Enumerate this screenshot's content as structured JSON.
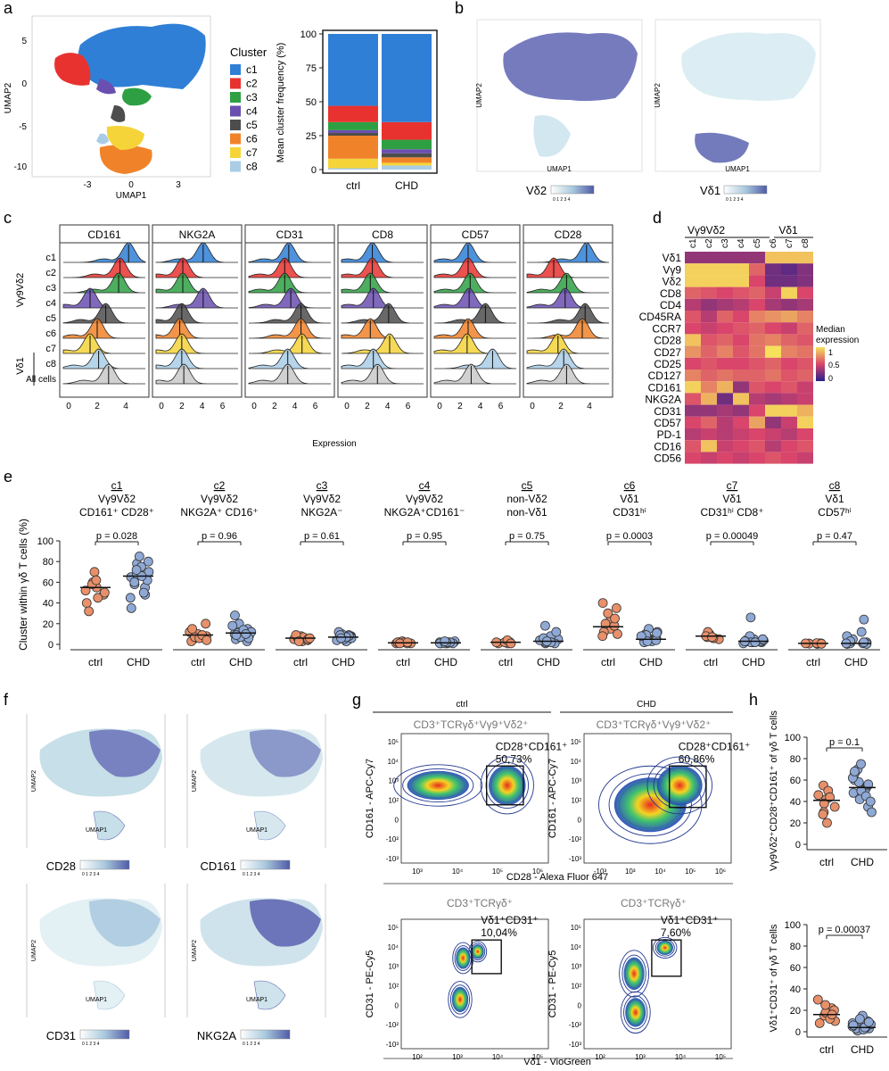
{
  "colors": {
    "c1": "#2f7fd6",
    "c2": "#e8322f",
    "c3": "#2ea043",
    "c4": "#6a4fb0",
    "c5": "#4d4d4d",
    "c6": "#f0832a",
    "c7": "#f5d43a",
    "c8": "#a9cde6",
    "ctrl": "#e8906a",
    "chd": "#8fa9d6",
    "umap_hi": "#4f5aa8",
    "umap_lo": "#dceef3"
  },
  "panels": {
    "a": "a",
    "b": "b",
    "c": "c",
    "d": "d",
    "e": "e",
    "f": "f",
    "g": "g",
    "h": "h"
  },
  "a": {
    "umap_xlabel": "UMAP1",
    "umap_ylabel": "UMAP2",
    "umap_xticks": [
      "-3",
      "0",
      "3"
    ],
    "umap_yticks": [
      "5",
      "0",
      "-5",
      "-10"
    ],
    "legend_title": "Cluster",
    "clusters": [
      "c1",
      "c2",
      "c3",
      "c4",
      "c5",
      "c6",
      "c7",
      "c8"
    ]
  },
  "chart_data": [
    {
      "type": "bar",
      "id": "cluster-frequency",
      "ylabel": "Mean cluster frequency (%)",
      "categories": [
        "ctrl",
        "CHD"
      ],
      "ylim": [
        0,
        100
      ],
      "yticks": [
        "100",
        "75",
        "50",
        "25",
        "0"
      ],
      "series": [
        {
          "name": "c8",
          "values": [
            1,
            3
          ]
        },
        {
          "name": "c7",
          "values": [
            7,
            2
          ]
        },
        {
          "name": "c6",
          "values": [
            17,
            4
          ]
        },
        {
          "name": "c5",
          "values": [
            2,
            3
          ]
        },
        {
          "name": "c4",
          "values": [
            2,
            3
          ]
        },
        {
          "name": "c3",
          "values": [
            6,
            7
          ]
        },
        {
          "name": "c2",
          "values": [
            12,
            13
          ]
        },
        {
          "name": "c1",
          "values": [
            53,
            65
          ]
        }
      ]
    },
    {
      "type": "scatter",
      "id": "cluster-within-gd",
      "ylabel": "Cluster within γδ T cells (%)",
      "ylim": [
        0,
        100
      ],
      "yticks": [
        "100",
        "80",
        "60",
        "40",
        "20",
        "0"
      ],
      "groups": [
        {
          "cluster": "c1",
          "line1": "Vγ9Vδ2",
          "line2": "CD161⁺ CD28⁺",
          "p": "p = 0.028",
          "ctrl": [
            52,
            48,
            40,
            55,
            60,
            70,
            45,
            32,
            58,
            62,
            50
          ],
          "chd": [
            65,
            58,
            72,
            80,
            48,
            35,
            70,
            55,
            78,
            62,
            68,
            75,
            60,
            50,
            85,
            66,
            72,
            45
          ],
          "ctrl_median": 55,
          "chd_median": 66
        },
        {
          "cluster": "c2",
          "line1": "Vγ9Vδ2",
          "line2": "NKG2A⁺ CD16⁺",
          "p": "p = 0.96",
          "ctrl": [
            5,
            8,
            12,
            3,
            10,
            20,
            7,
            6,
            9,
            4,
            15
          ],
          "chd": [
            8,
            12,
            20,
            5,
            10,
            15,
            3,
            9,
            28,
            12,
            18,
            6,
            11,
            14,
            7,
            9,
            10
          ],
          "ctrl_median": 9,
          "chd_median": 11
        },
        {
          "cluster": "c3",
          "line1": "Vγ9Vδ2",
          "line2": "NKG2A⁻",
          "p": "p = 0.61",
          "ctrl": [
            3,
            5,
            8,
            6,
            4,
            7,
            9,
            5,
            6,
            3
          ],
          "chd": [
            5,
            8,
            10,
            6,
            4,
            9,
            7,
            12,
            3,
            6,
            8,
            5,
            7,
            9,
            6
          ],
          "ctrl_median": 6,
          "chd_median": 7
        },
        {
          "cluster": "c4",
          "line1": "Vγ9Vδ2",
          "line2": "NKG2A⁺CD161⁻",
          "p": "p = 0.95",
          "ctrl": [
            1,
            2,
            1,
            3,
            2,
            1,
            2,
            1,
            2
          ],
          "chd": [
            1,
            2,
            1,
            2,
            3,
            1,
            2,
            1,
            2,
            1,
            2,
            3
          ],
          "ctrl_median": 1.5,
          "chd_median": 1.5
        },
        {
          "cluster": "c5",
          "line1": "non-Vδ2",
          "line2": "non-Vδ1",
          "p": "p = 0.75",
          "ctrl": [
            1,
            2,
            3,
            1,
            2,
            4,
            2,
            1
          ],
          "chd": [
            1,
            3,
            5,
            8,
            12,
            18,
            2,
            4,
            1,
            6,
            2,
            3
          ],
          "ctrl_median": 2,
          "chd_median": 3
        },
        {
          "cluster": "c6",
          "line1": "Vδ1",
          "line2": "CD31ʰⁱ",
          "p": "p = 0.0003",
          "ctrl": [
            15,
            22,
            30,
            40,
            12,
            8,
            18,
            25,
            10,
            20,
            35
          ],
          "chd": [
            5,
            8,
            3,
            10,
            12,
            6,
            4,
            2,
            15,
            7,
            5,
            9,
            3,
            6,
            4,
            11,
            8
          ],
          "ctrl_median": 17,
          "chd_median": 5
        },
        {
          "cluster": "c7",
          "line1": "Vδ1",
          "line2": "CD31ʰⁱ CD8⁺",
          "p": "p = 0.00049",
          "ctrl": [
            6,
            8,
            10,
            5,
            7,
            9,
            12,
            8,
            6,
            7
          ],
          "chd": [
            2,
            3,
            5,
            4,
            1,
            2,
            3,
            8,
            4,
            2,
            3,
            5,
            2,
            3,
            26
          ],
          "ctrl_median": 8,
          "chd_median": 3
        },
        {
          "cluster": "c8",
          "line1": "Vδ1",
          "line2": "CD57ʰⁱ",
          "p": "p = 0.47",
          "ctrl": [
            1,
            0.5,
            1,
            0.8,
            1.2,
            0.6,
            1
          ],
          "chd": [
            0.5,
            1,
            2,
            5,
            8,
            12,
            1,
            3,
            0.5,
            24,
            2,
            1
          ],
          "ctrl_median": 1,
          "chd_median": 1
        }
      ],
      "categories": [
        "ctrl",
        "CHD"
      ]
    },
    {
      "type": "scatter",
      "id": "h-top",
      "ylabel": "Vγ9Vδ2⁺CD28⁺CD161⁺ of γδ T cells",
      "ylim": [
        0,
        100
      ],
      "yticks": [
        "100",
        "80",
        "60",
        "40",
        "20",
        "0"
      ],
      "categories": [
        "ctrl",
        "CHD"
      ],
      "p": "p = 0.1",
      "ctrl": [
        42,
        38,
        55,
        30,
        46,
        20,
        50,
        35,
        44,
        28
      ],
      "chd": [
        60,
        52,
        70,
        48,
        35,
        58,
        66,
        42,
        55,
        62,
        30,
        50,
        75,
        45,
        68,
        40,
        56
      ],
      "ctrl_median": 41,
      "chd_median": 53
    },
    {
      "type": "scatter",
      "id": "h-bottom",
      "ylabel": "Vδ1⁺CD31⁺ of γδ T cells",
      "ylim": [
        0,
        100
      ],
      "yticks": [
        "100",
        "80",
        "60",
        "40",
        "20",
        "0"
      ],
      "categories": [
        "ctrl",
        "CHD"
      ],
      "p": "p = 0.00037",
      "ctrl": [
        15,
        22,
        30,
        10,
        18,
        25,
        12,
        8,
        20,
        16
      ],
      "chd": [
        3,
        5,
        8,
        2,
        10,
        4,
        6,
        1,
        15,
        3,
        7,
        5,
        12,
        2,
        4,
        6,
        9
      ],
      "ctrl_median": 16,
      "chd_median": 4
    },
    {
      "type": "heatmap",
      "id": "median-expression",
      "title": "Median expression",
      "legend_ticks": [
        "1",
        "0.5",
        "0"
      ],
      "column_groups": [
        "Vγ9Vδ2",
        "Vδ1"
      ],
      "columns": [
        "c1",
        "c2",
        "c3",
        "c4",
        "c5",
        "c6",
        "c7",
        "c8"
      ],
      "rows": [
        "Vδ1",
        "Vγ9",
        "Vδ2",
        "CD8",
        "CD4",
        "CD45RA",
        "CCR7",
        "CD28",
        "CD27",
        "CD25",
        "CD127",
        "CD161",
        "NKG2A",
        "CD31",
        "CD57",
        "PD-1",
        "CD16",
        "CD56"
      ],
      "values": [
        [
          0.3,
          0.3,
          0.3,
          0.3,
          0.3,
          0.9,
          0.9,
          0.9
        ],
        [
          0.95,
          0.95,
          0.95,
          0.95,
          0.6,
          0.2,
          0.15,
          0.25
        ],
        [
          0.95,
          0.95,
          0.95,
          0.95,
          0.5,
          0.2,
          0.2,
          0.25
        ],
        [
          0.6,
          0.55,
          0.5,
          0.55,
          0.6,
          0.45,
          0.95,
          0.5
        ],
        [
          0.4,
          0.3,
          0.35,
          0.4,
          0.5,
          0.35,
          0.3,
          0.35
        ],
        [
          0.55,
          0.4,
          0.6,
          0.5,
          0.7,
          0.75,
          0.8,
          0.7
        ],
        [
          0.5,
          0.45,
          0.5,
          0.55,
          0.6,
          0.5,
          0.45,
          0.6
        ],
        [
          0.9,
          0.55,
          0.6,
          0.5,
          0.65,
          0.7,
          0.6,
          0.55
        ],
        [
          0.75,
          0.6,
          0.7,
          0.55,
          0.65,
          1.0,
          0.7,
          0.65
        ],
        [
          0.5,
          0.55,
          0.5,
          0.5,
          0.55,
          0.6,
          0.5,
          0.55
        ],
        [
          0.7,
          0.6,
          0.65,
          0.6,
          0.6,
          0.65,
          0.55,
          0.6
        ],
        [
          0.95,
          0.7,
          0.85,
          0.3,
          0.55,
          0.5,
          0.55,
          0.45
        ],
        [
          0.55,
          0.85,
          0.2,
          0.9,
          0.4,
          0.35,
          0.4,
          0.45
        ],
        [
          0.3,
          0.3,
          0.35,
          0.3,
          0.5,
          0.95,
          0.95,
          0.85
        ],
        [
          0.5,
          0.6,
          0.4,
          0.5,
          0.8,
          0.3,
          0.45,
          0.95
        ],
        [
          0.4,
          0.45,
          0.4,
          0.45,
          0.5,
          0.45,
          0.4,
          0.5
        ],
        [
          0.55,
          0.9,
          0.45,
          0.5,
          0.55,
          0.4,
          0.5,
          0.55
        ],
        [
          0.5,
          0.45,
          0.5,
          0.45,
          0.5,
          0.55,
          0.5,
          0.45
        ]
      ]
    }
  ],
  "b": {
    "xlabel": "UMAP1",
    "ylabel": "UMAP2",
    "legends": [
      {
        "name": "Vδ2",
        "ticks": "0 1 2 3 4"
      },
      {
        "name": "Vδ1",
        "ticks": "0 1 2 3 4"
      }
    ]
  },
  "c": {
    "markers": [
      "CD161",
      "NKG2A",
      "CD31",
      "CD8",
      "CD57",
      "CD28"
    ],
    "rows": [
      "c1",
      "c2",
      "c3",
      "c4",
      "c5",
      "c6",
      "c7",
      "c8",
      "All cells"
    ],
    "group1": "Vγ9Vδ2",
    "group2": "Vδ1",
    "xticks": [
      [
        "0",
        "2",
        "4"
      ],
      [
        "0",
        "2",
        "4",
        "6"
      ],
      [
        "0",
        "2",
        "4",
        "6"
      ],
      [
        "0",
        "2",
        "4",
        "6"
      ],
      [
        "0",
        "2",
        "4",
        "6"
      ],
      [
        "0",
        "2",
        "4"
      ]
    ],
    "xlabel": "Expression"
  },
  "e": {
    "clusters": [
      "c1",
      "c2",
      "c3",
      "c4",
      "c5",
      "c6",
      "c7",
      "c8"
    ]
  },
  "f": {
    "xlabel": "UMAP1",
    "ylabel": "UMAP2",
    "markers": [
      "CD28",
      "CD161",
      "CD31",
      "NKG2A"
    ],
    "ticks": "0 1 2 3 4"
  },
  "g": {
    "ctrl_label": "ctrl",
    "chd_label": "CHD",
    "top_gate": "CD3⁺TCRγδ⁺Vγ9⁺Vδ2⁺",
    "bottom_gate": "CD3⁺TCRγδ⁺",
    "top_pop": "CD28⁺CD161⁺",
    "bottom_pop": "Vδ1⁺CD31⁺",
    "top_pct": [
      "50,73%",
      "60,86%"
    ],
    "bottom_pct": [
      "10,04%",
      "7,60%"
    ],
    "top_y": "CD161 - APC-Cy7",
    "top_x": "CD28 - Alexa Fluor 647",
    "bottom_y": "CD31 - PE-Cy5",
    "bottom_x": "Vδ1 - VioGreen",
    "yticks": [
      "10⁵",
      "10⁴",
      "10³",
      "10²",
      "0",
      "-10²",
      "-10³"
    ],
    "xticks_ctrl": [
      "10³",
      "10⁴",
      "10⁵",
      "10⁶"
    ],
    "xticks_chd": [
      "-10³",
      "10³",
      "10⁴",
      "10⁵",
      "10⁶"
    ],
    "xticks_bottom": [
      "10²",
      "10³",
      "10⁴",
      "10⁵"
    ]
  }
}
